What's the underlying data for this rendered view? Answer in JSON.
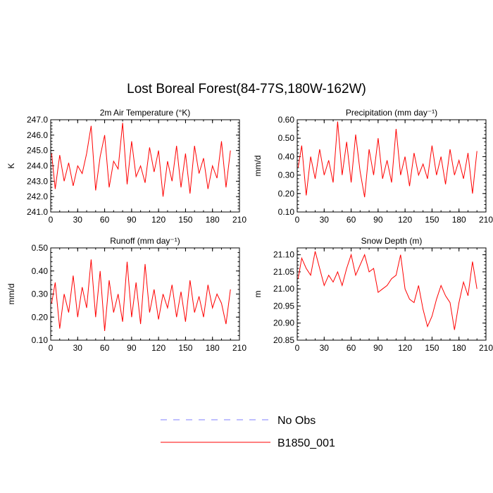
{
  "figure": {
    "title": "Lost Boreal Forest(84-77S,180W-162W)"
  },
  "legend": {
    "entries": [
      {
        "label": "No Obs",
        "color": "#8080ff",
        "style": "dashed"
      },
      {
        "label": "B1850_001",
        "color": "#ff0000",
        "style": "solid"
      }
    ]
  },
  "chart_data": [
    {
      "type": "line",
      "title": "2m Air Temperature (°K)",
      "ylabel": "K",
      "xlim": [
        0,
        210
      ],
      "ylim": [
        241.0,
        247.0
      ],
      "xticks": [
        "0",
        "30",
        "60",
        "90",
        "120",
        "150",
        "180",
        "210"
      ],
      "yticks": [
        "241.0",
        "242.0",
        "243.0",
        "244.0",
        "245.0",
        "246.0",
        "247.0"
      ],
      "grid": false,
      "series": [
        {
          "name": "B1850_001",
          "color": "#ff0000",
          "x": [
            1,
            5,
            10,
            15,
            20,
            25,
            30,
            35,
            40,
            45,
            50,
            55,
            60,
            65,
            70,
            75,
            80,
            85,
            90,
            95,
            100,
            105,
            110,
            115,
            120,
            125,
            130,
            135,
            140,
            145,
            150,
            155,
            160,
            165,
            170,
            175,
            180,
            185,
            190,
            195,
            200
          ],
          "y": [
            244.8,
            242.5,
            244.7,
            243.0,
            244.2,
            242.7,
            244.0,
            243.5,
            244.8,
            246.6,
            242.4,
            244.6,
            246.0,
            242.6,
            244.3,
            243.8,
            246.8,
            242.8,
            245.6,
            243.3,
            244.0,
            242.9,
            245.2,
            243.6,
            245.0,
            242.0,
            244.3,
            243.0,
            245.3,
            242.6,
            244.8,
            242.2,
            245.3,
            243.5,
            244.5,
            242.5,
            244.0,
            243.2,
            245.6,
            242.6,
            245.0
          ]
        }
      ]
    },
    {
      "type": "line",
      "title": "Precipitation (mm day⁻¹)",
      "ylabel": "mm/d",
      "xlim": [
        0,
        210
      ],
      "ylim": [
        0.1,
        0.6
      ],
      "xticks": [
        "0",
        "30",
        "60",
        "90",
        "120",
        "150",
        "180",
        "210"
      ],
      "yticks": [
        "0.10",
        "0.20",
        "0.30",
        "0.40",
        "0.50",
        "0.60"
      ],
      "grid": false,
      "series": [
        {
          "name": "B1850_001",
          "color": "#ff0000",
          "x": [
            1,
            5,
            10,
            15,
            20,
            25,
            30,
            35,
            40,
            45,
            50,
            55,
            60,
            65,
            70,
            75,
            80,
            85,
            90,
            95,
            100,
            105,
            110,
            115,
            120,
            125,
            130,
            135,
            140,
            145,
            150,
            155,
            160,
            165,
            170,
            175,
            180,
            185,
            190,
            195,
            200
          ],
          "y": [
            0.34,
            0.46,
            0.19,
            0.4,
            0.28,
            0.44,
            0.3,
            0.38,
            0.26,
            0.59,
            0.3,
            0.48,
            0.26,
            0.52,
            0.32,
            0.18,
            0.44,
            0.3,
            0.5,
            0.28,
            0.38,
            0.26,
            0.55,
            0.3,
            0.4,
            0.24,
            0.42,
            0.3,
            0.36,
            0.28,
            0.46,
            0.3,
            0.4,
            0.25,
            0.44,
            0.3,
            0.38,
            0.28,
            0.42,
            0.2,
            0.43
          ]
        }
      ]
    },
    {
      "type": "line",
      "title": "Runoff (mm day⁻¹)",
      "ylabel": "mm/d",
      "xlim": [
        0,
        210
      ],
      "ylim": [
        0.1,
        0.5
      ],
      "xticks": [
        "0",
        "30",
        "60",
        "90",
        "120",
        "150",
        "180",
        "210"
      ],
      "yticks": [
        "0.10",
        "0.20",
        "0.30",
        "0.40",
        "0.50"
      ],
      "grid": false,
      "series": [
        {
          "name": "B1850_001",
          "color": "#ff0000",
          "x": [
            1,
            5,
            10,
            15,
            20,
            25,
            30,
            35,
            40,
            45,
            50,
            55,
            60,
            65,
            70,
            75,
            80,
            85,
            90,
            95,
            100,
            105,
            110,
            115,
            120,
            125,
            130,
            135,
            140,
            145,
            150,
            155,
            160,
            165,
            170,
            175,
            180,
            185,
            190,
            195,
            200
          ],
          "y": [
            0.26,
            0.35,
            0.15,
            0.3,
            0.22,
            0.38,
            0.2,
            0.33,
            0.24,
            0.45,
            0.2,
            0.4,
            0.14,
            0.36,
            0.22,
            0.3,
            0.18,
            0.44,
            0.2,
            0.35,
            0.17,
            0.43,
            0.22,
            0.32,
            0.19,
            0.3,
            0.24,
            0.34,
            0.2,
            0.31,
            0.18,
            0.36,
            0.22,
            0.29,
            0.2,
            0.34,
            0.24,
            0.3,
            0.26,
            0.17,
            0.32
          ]
        }
      ]
    },
    {
      "type": "line",
      "title": "Snow Depth (m)",
      "ylabel": "m",
      "xlim": [
        0,
        210
      ],
      "ylim": [
        20.85,
        21.12
      ],
      "xticks": [
        "0",
        "30",
        "60",
        "90",
        "120",
        "150",
        "180",
        "210"
      ],
      "yticks": [
        "20.85",
        "20.90",
        "20.95",
        "21.00",
        "21.05",
        "21.10"
      ],
      "grid": false,
      "series": [
        {
          "name": "B1850_001",
          "color": "#ff0000",
          "x": [
            1,
            5,
            10,
            15,
            20,
            25,
            30,
            35,
            40,
            45,
            50,
            55,
            60,
            65,
            70,
            75,
            80,
            85,
            90,
            95,
            100,
            105,
            110,
            115,
            120,
            125,
            130,
            135,
            140,
            145,
            150,
            155,
            160,
            165,
            170,
            175,
            180,
            185,
            190,
            195,
            200
          ],
          "y": [
            21.03,
            21.09,
            21.06,
            21.04,
            21.11,
            21.06,
            21.01,
            21.04,
            21.02,
            21.05,
            21.01,
            21.06,
            21.1,
            21.04,
            21.07,
            21.1,
            21.05,
            21.06,
            20.99,
            21.0,
            21.01,
            21.03,
            21.04,
            21.1,
            21.0,
            20.97,
            20.96,
            21.01,
            20.94,
            20.89,
            20.92,
            20.97,
            21.01,
            20.98,
            20.96,
            20.88,
            20.96,
            21.02,
            20.98,
            21.08,
            21.0
          ]
        }
      ]
    }
  ]
}
